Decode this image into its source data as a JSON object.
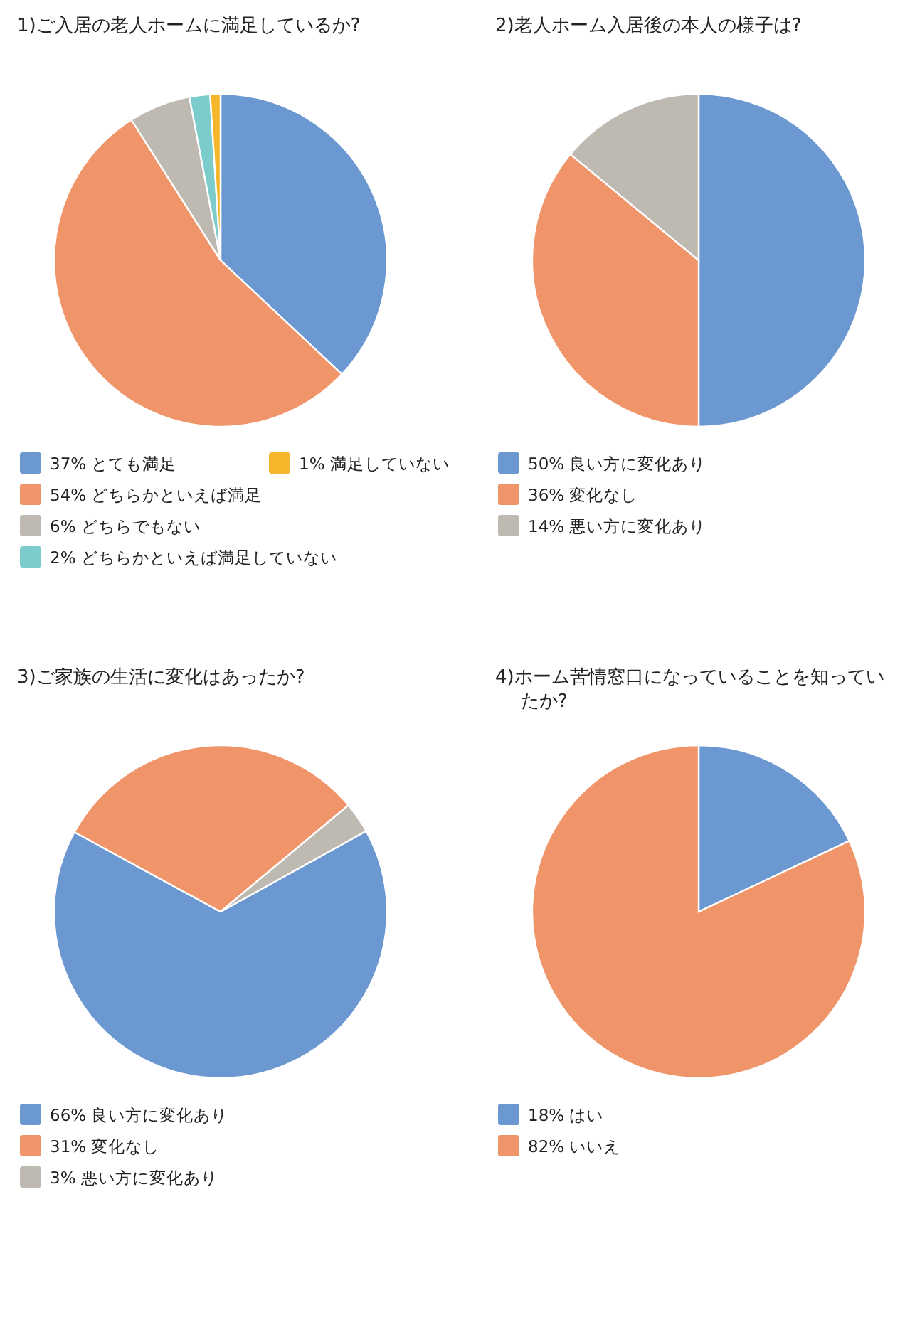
{
  "chart_data": [
    {
      "type": "pie",
      "title": "1)ご入居の老人ホームに満足しているか?",
      "categories": [
        "とても満足",
        "どちらかといえば満足",
        "どちらでもない",
        "どちらかといえば満足していない",
        "満足していない"
      ],
      "values": [
        37,
        54,
        6,
        2,
        1
      ],
      "value_labels": [
        "37%",
        "54%",
        "6%",
        "2%",
        "1%"
      ],
      "colors": [
        "#6b98d0",
        "#f0956a",
        "#bfbab1",
        "#7ccccc",
        "#f6b62c"
      ],
      "legend": "bottom"
    },
    {
      "type": "pie",
      "title": "2)老人ホーム入居後の本人の様子は?",
      "categories": [
        "良い方に変化あり",
        "変化なし",
        "悪い方に変化あり"
      ],
      "values": [
        50,
        36,
        14
      ],
      "value_labels": [
        "50%",
        "36%",
        "14%"
      ],
      "colors": [
        "#6b98d0",
        "#f0956a",
        "#bfbab1"
      ],
      "legend": "bottom"
    },
    {
      "type": "pie",
      "title": "3)ご家族の生活に変化はあったか?",
      "categories": [
        "良い方に変化あり",
        "変化なし",
        "悪い方に変化あり"
      ],
      "values": [
        66,
        31,
        3
      ],
      "value_labels": [
        "66%",
        "31%",
        "3%"
      ],
      "colors": [
        "#6b98d0",
        "#f0956a",
        "#bfbab1"
      ],
      "legend": "bottom"
    },
    {
      "type": "pie",
      "title": "4)ホーム苦情窓口になっていることを知っていたか?",
      "categories": [
        "はい",
        "いいえ"
      ],
      "values": [
        18,
        82
      ],
      "value_labels": [
        "18%",
        "82%"
      ],
      "colors": [
        "#6b98d0",
        "#f0956a"
      ],
      "legend": "bottom"
    }
  ]
}
